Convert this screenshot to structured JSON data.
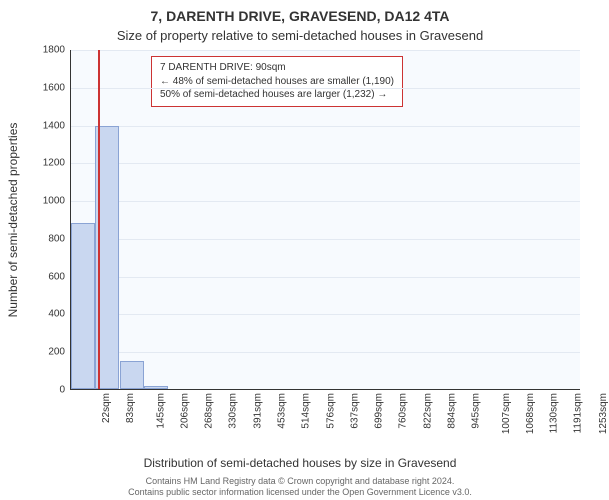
{
  "title": "7, DARENTH DRIVE, GRAVESEND, DA12 4TA",
  "subtitle": "Size of property relative to semi-detached houses in Gravesend",
  "y_axis_label": "Number of semi-detached properties",
  "x_axis_label": "Distribution of semi-detached houses by size in Gravesend",
  "footnote_line1": "Contains HM Land Registry data © Crown copyright and database right 2024.",
  "footnote_line2": "Contains public sector information licensed under the Open Government Licence v3.0.",
  "chart": {
    "type": "bar-histogram",
    "background_color": "#f7fafe",
    "grid_color": "#e3e9f2",
    "bar_fill": "#c9d7f0",
    "bar_border": "#8aa3d4",
    "marker_color": "#cc3333",
    "axis_color": "#333333",
    "y_min": 0,
    "y_max": 1800,
    "y_step": 200,
    "x_labels": [
      "22sqm",
      "83sqm",
      "145sqm",
      "206sqm",
      "268sqm",
      "330sqm",
      "391sqm",
      "453sqm",
      "514sqm",
      "576sqm",
      "637sqm",
      "699sqm",
      "760sqm",
      "822sqm",
      "884sqm",
      "945sqm",
      "1007sqm",
      "1068sqm",
      "1130sqm",
      "1191sqm",
      "1253sqm"
    ],
    "x_bin_starts_sqm": [
      22,
      83,
      145,
      206,
      268,
      330,
      391,
      453,
      514,
      576,
      637,
      699,
      760,
      822,
      884,
      945,
      1007,
      1068,
      1130,
      1191,
      1253
    ],
    "x_range_sqm": [
      22,
      1315
    ],
    "values": [
      880,
      1395,
      150,
      17,
      4,
      2,
      2,
      0,
      0,
      1,
      0,
      0,
      0,
      0,
      0,
      0,
      0,
      1,
      0,
      0,
      0
    ],
    "marker_value_sqm": 90,
    "title_fontsize": 14,
    "subtitle_fontsize": 13,
    "axis_label_fontsize": 12,
    "tick_fontsize": 10,
    "footnote_fontsize": 9
  },
  "info_box": {
    "border_color": "#cc3333",
    "line1": "7 DARENTH DRIVE: 90sqm",
    "line2": "← 48% of semi-detached houses are smaller (1,190)",
    "line3": "50% of semi-detached houses are larger (1,232) →"
  }
}
